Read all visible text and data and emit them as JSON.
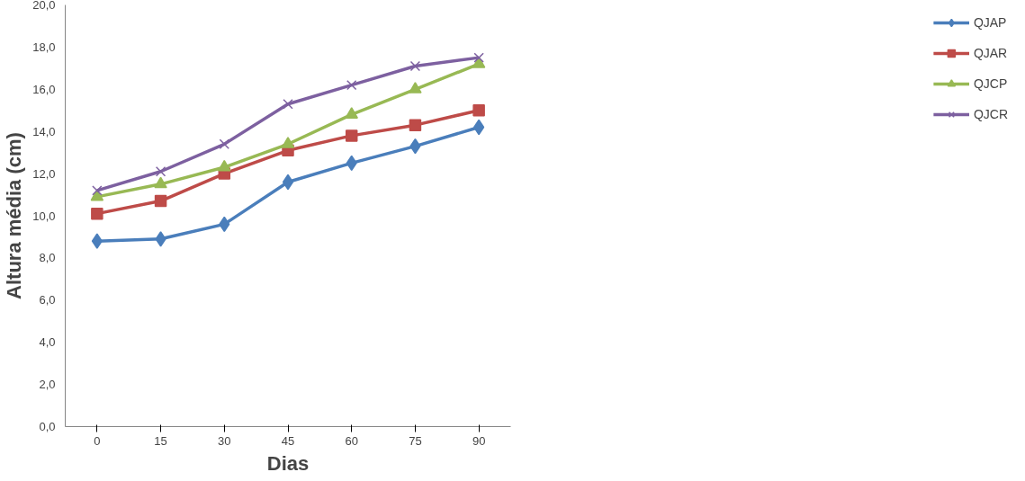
{
  "chart_data": {
    "type": "line",
    "xlabel": "Dias",
    "ylabel": "Altura média (cm)",
    "categories": [
      "0",
      "15",
      "30",
      "45",
      "60",
      "75",
      "90"
    ],
    "ylim": [
      0,
      20
    ],
    "yticks": [
      {
        "value": 0,
        "label": "0,0"
      },
      {
        "value": 2,
        "label": "2,0"
      },
      {
        "value": 4,
        "label": "4,0"
      },
      {
        "value": 6,
        "label": "6,0"
      },
      {
        "value": 8,
        "label": "8,0"
      },
      {
        "value": 10,
        "label": "10,0"
      },
      {
        "value": 12,
        "label": "12,0"
      },
      {
        "value": 14,
        "label": "14,0"
      },
      {
        "value": 16,
        "label": "16,0"
      },
      {
        "value": 18,
        "label": "18,0"
      },
      {
        "value": 20,
        "label": "20,0"
      }
    ],
    "grid": false,
    "legend": "right",
    "line_style": "solid",
    "series": [
      {
        "name": "QJAP",
        "color": "#4a7ebb",
        "marker": "diamond",
        "values": [
          8.8,
          8.9,
          9.6,
          11.6,
          12.5,
          13.3,
          14.2
        ]
      },
      {
        "name": "QJAR",
        "color": "#be4b48",
        "marker": "square",
        "values": [
          10.1,
          10.7,
          12.0,
          13.1,
          13.8,
          14.3,
          15.0
        ]
      },
      {
        "name": "QJCP",
        "color": "#98b954",
        "marker": "triangle",
        "values": [
          10.9,
          11.5,
          12.3,
          13.4,
          14.8,
          16.0,
          17.2
        ]
      },
      {
        "name": "QJCR",
        "color": "#7d60a0",
        "marker": "cross",
        "values": [
          11.2,
          12.1,
          13.4,
          15.3,
          16.2,
          17.1,
          17.5
        ]
      }
    ]
  }
}
